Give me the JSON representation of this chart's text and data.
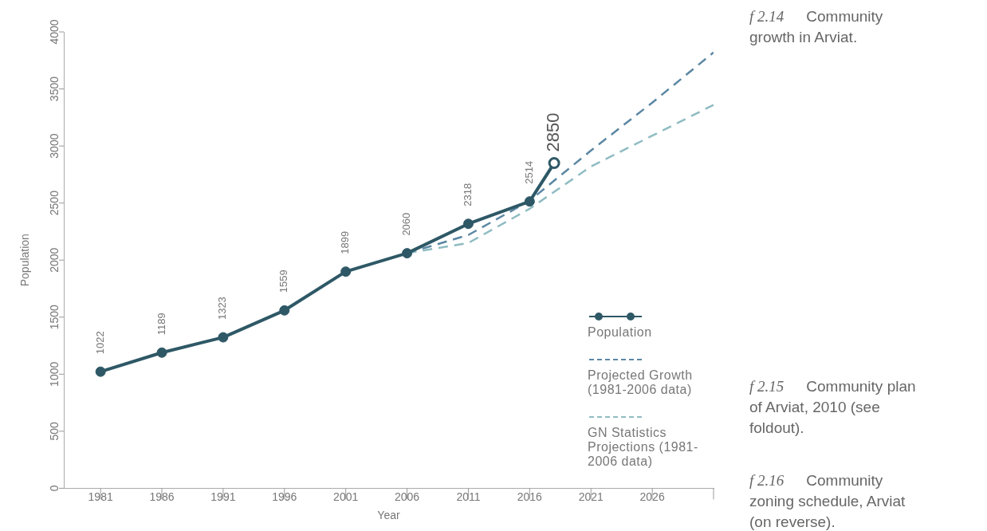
{
  "chart_data": {
    "type": "line",
    "xlabel": "Year",
    "ylabel": "Population",
    "xlim": [
      1978,
      2031
    ],
    "xticks": [
      1981,
      1986,
      1991,
      1996,
      2001,
      2006,
      2011,
      2016,
      2021,
      2026,
      {
        "value": 2031,
        "label": null
      }
    ],
    "ylim": [
      0,
      4000
    ],
    "yticks": [
      0,
      500,
      1000,
      1500,
      2000,
      2500,
      3000,
      3500,
      4000
    ],
    "grid": false,
    "legend": "right",
    "series": [
      {
        "name": "Projected Growth (1981-2006 data)",
        "color": "#5b87a3",
        "line_style": "dashed",
        "marker": "none",
        "x": [
          2006,
          2011,
          2016,
          2021,
          2026,
          2031
        ],
        "values": [
          2060,
          2220,
          2520,
          2960,
          3380,
          3820
        ]
      },
      {
        "name": "GN Statistics Projections (1981-2006 data)",
        "color": "#8fbcc2",
        "line_style": "dashed",
        "marker": "none",
        "x": [
          2006,
          2011,
          2016,
          2021,
          2026,
          2031
        ],
        "values": [
          2060,
          2150,
          2450,
          2820,
          3090,
          3360
        ]
      },
      {
        "name": "Population",
        "color": "#2e5866",
        "line_style": "solid",
        "marker": "circle",
        "data_labels": true,
        "x": [
          1981,
          1986,
          1991,
          1996,
          2001,
          2006,
          2011,
          2016,
          2018
        ],
        "values": [
          1022,
          1189,
          1323,
          1559,
          1899,
          2060,
          2318,
          2514,
          2850
        ]
      }
    ],
    "annotations": [
      "f 2.14  Community growth in Arviat.",
      "f 2.15  Community plan of Arviat, 2010 (see foldout).",
      "f 2.16  Community zoning schedule, Arviat (on reverse)."
    ]
  }
}
